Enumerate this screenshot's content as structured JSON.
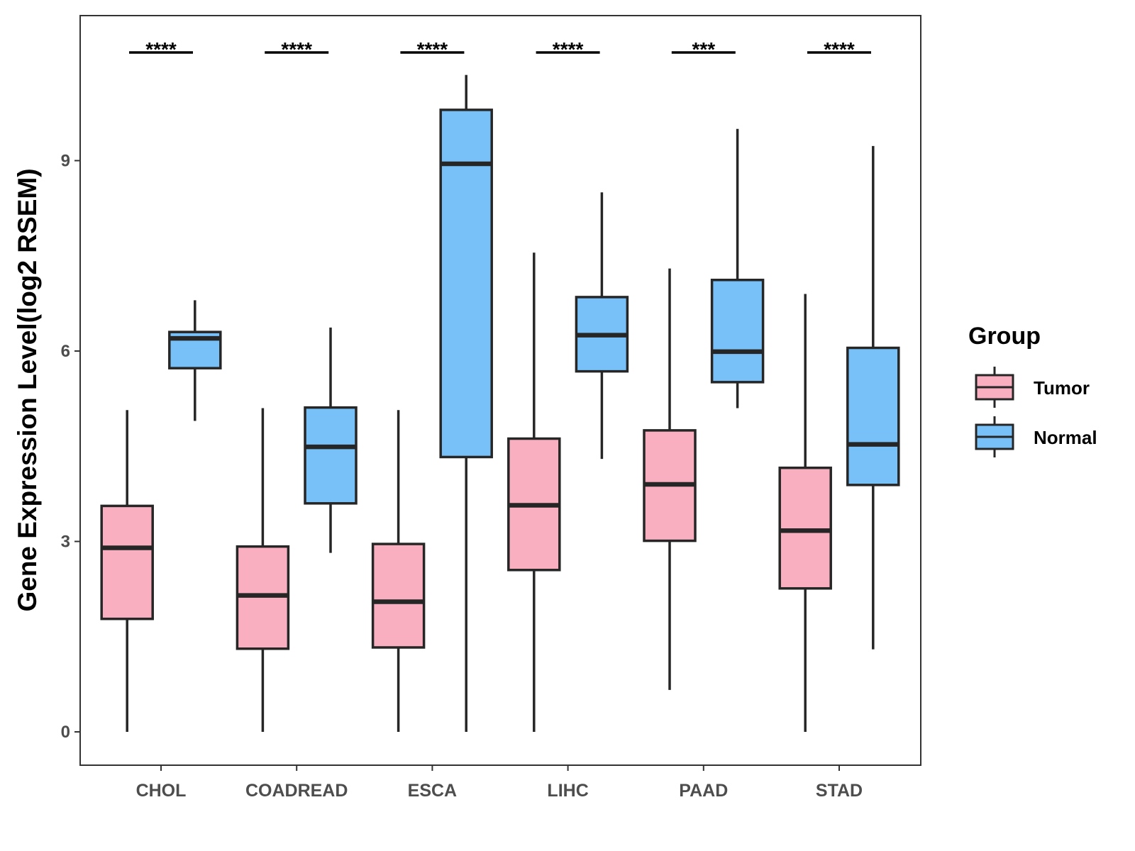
{
  "chart_data": {
    "type": "boxplot",
    "title": "",
    "xlabel": "",
    "ylabel": "Gene Expression Level(log2 RSEM)",
    "ylim": [
      -0.5,
      11.3
    ],
    "yticks": [
      0,
      3,
      6,
      9
    ],
    "categories": [
      "CHOL",
      "COADREAD",
      "ESCA",
      "LIHC",
      "PAAD",
      "STAD"
    ],
    "legend": {
      "title": "Group",
      "position": "right"
    },
    "series": [
      {
        "name": "Tumor",
        "color": "#F9AFC0",
        "boxes": [
          {
            "category": "CHOL",
            "min": 0.0,
            "q1": 1.78,
            "median": 2.9,
            "q3": 3.56,
            "max": 5.07
          },
          {
            "category": "COADREAD",
            "min": 0.0,
            "q1": 1.31,
            "median": 2.15,
            "q3": 2.92,
            "max": 5.1
          },
          {
            "category": "ESCA",
            "min": 0.0,
            "q1": 1.33,
            "median": 2.05,
            "q3": 2.96,
            "max": 5.07
          },
          {
            "category": "LIHC",
            "min": 0.0,
            "q1": 2.55,
            "median": 3.57,
            "q3": 4.62,
            "max": 7.55
          },
          {
            "category": "PAAD",
            "min": 0.66,
            "q1": 3.01,
            "median": 3.9,
            "q3": 4.75,
            "max": 7.3
          },
          {
            "category": "STAD",
            "min": 0.0,
            "q1": 2.26,
            "median": 3.17,
            "q3": 4.16,
            "max": 6.9
          }
        ]
      },
      {
        "name": "Normal",
        "color": "#78C1F8",
        "boxes": [
          {
            "category": "CHOL",
            "min": 4.9,
            "q1": 5.73,
            "median": 6.2,
            "q3": 6.3,
            "max": 6.8
          },
          {
            "category": "COADREAD",
            "min": 2.82,
            "q1": 3.6,
            "median": 4.49,
            "q3": 5.11,
            "max": 6.37
          },
          {
            "category": "ESCA",
            "min": 0.0,
            "q1": 4.33,
            "median": 8.95,
            "q3": 9.8,
            "max": 10.35
          },
          {
            "category": "LIHC",
            "min": 4.3,
            "q1": 5.68,
            "median": 6.25,
            "q3": 6.85,
            "max": 8.5
          },
          {
            "category": "PAAD",
            "min": 5.1,
            "q1": 5.51,
            "median": 5.99,
            "q3": 7.12,
            "max": 9.5
          },
          {
            "category": "STAD",
            "min": 1.3,
            "q1": 3.89,
            "median": 4.53,
            "q3": 6.05,
            "max": 9.23
          }
        ]
      }
    ],
    "significance": [
      {
        "category": "CHOL",
        "label": "****"
      },
      {
        "category": "COADREAD",
        "label": "****"
      },
      {
        "category": "ESCA",
        "label": "****"
      },
      {
        "category": "LIHC",
        "label": "****"
      },
      {
        "category": "PAAD",
        "label": "***"
      },
      {
        "category": "STAD",
        "label": "****"
      }
    ]
  }
}
